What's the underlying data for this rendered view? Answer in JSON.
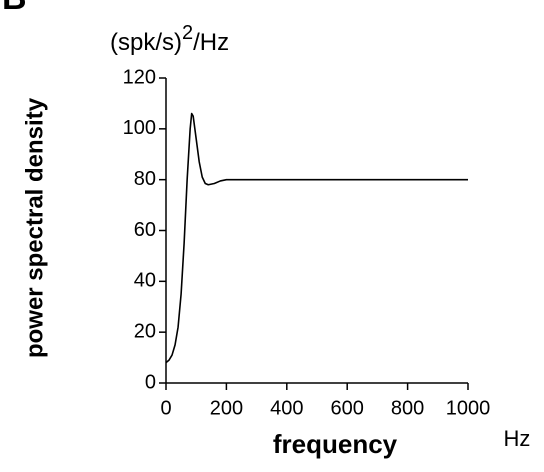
{
  "panel_label": "B",
  "chart_data": {
    "type": "line",
    "y_unit": {
      "base": "(spk/s)",
      "exponent": "2",
      "tail": "/Hz"
    },
    "y_label": "power spectral density",
    "x_label": "frequency",
    "x_unit": "Hz",
    "color": "#000000",
    "x": [
      0,
      10,
      20,
      30,
      40,
      50,
      60,
      70,
      80,
      85,
      90,
      100,
      110,
      120,
      130,
      140,
      160,
      180,
      200,
      250,
      1000
    ],
    "values": [
      8,
      9,
      11,
      15,
      22,
      35,
      55,
      80,
      100,
      106,
      105,
      96,
      87,
      81,
      78.5,
      78,
      78.5,
      79.5,
      80,
      80,
      80
    ],
    "xlim": [
      0,
      1000
    ],
    "xticks": [
      0,
      200,
      400,
      600,
      800,
      1000
    ],
    "ylim": [
      0,
      120
    ],
    "yticks": [
      0,
      20,
      40,
      60,
      80,
      100,
      120
    ]
  }
}
